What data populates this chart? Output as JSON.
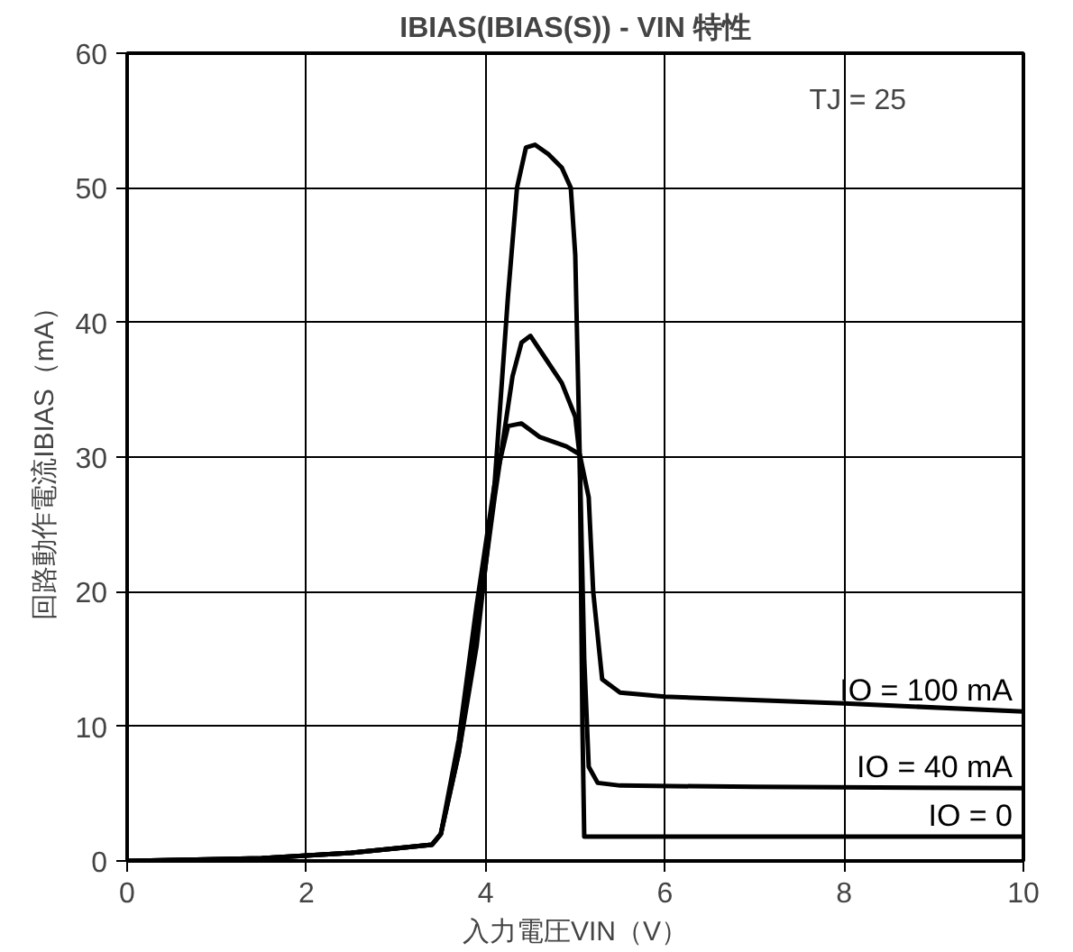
{
  "chart_data": {
    "type": "line",
    "title": "IBIAS(IBIAS(S)) - VIN 特性",
    "xlabel": "入力電圧VIN（V）",
    "ylabel": "回路動作電流IBIAS（mA）",
    "annotations": [
      "TJ = 25"
    ],
    "xlim": [
      0,
      10
    ],
    "ylim": [
      0,
      60
    ],
    "xticks": [
      0,
      2,
      4,
      6,
      8,
      10
    ],
    "yticks": [
      0,
      10,
      20,
      30,
      40,
      50,
      60
    ],
    "grid": true,
    "marker": "none",
    "line_style": "solid",
    "series": [
      {
        "name": "IO = 100 mA",
        "color": "#000000",
        "x": [
          0,
          1.5,
          2.5,
          3.4,
          3.5,
          3.7,
          3.9,
          4.1,
          4.25,
          4.4,
          4.6,
          4.9,
          5.05,
          5.15,
          5.2,
          5.3,
          5.5,
          6,
          8,
          10
        ],
        "values": [
          0,
          0.2,
          0.6,
          1.2,
          2,
          9,
          19,
          28,
          32.3,
          32.5,
          31.5,
          30.8,
          30.2,
          27,
          20,
          13.5,
          12.5,
          12.2,
          11.7,
          11.1
        ]
      },
      {
        "name": "IO = 40 mA",
        "color": "#000000",
        "x": [
          0,
          1.5,
          2.5,
          3.4,
          3.5,
          3.7,
          3.9,
          4.1,
          4.3,
          4.4,
          4.5,
          4.65,
          4.85,
          5.0,
          5.05,
          5.1,
          5.15,
          5.25,
          5.5,
          7,
          10
        ],
        "values": [
          0,
          0.2,
          0.6,
          1.2,
          2,
          8,
          17,
          27,
          36,
          38.5,
          39,
          37.5,
          35.5,
          33,
          30,
          15,
          7,
          5.8,
          5.6,
          5.5,
          5.4
        ]
      },
      {
        "name": "IO = 0",
        "color": "#000000",
        "x": [
          0,
          1.5,
          2.5,
          3.4,
          3.5,
          3.7,
          3.9,
          4.1,
          4.25,
          4.35,
          4.45,
          4.55,
          4.7,
          4.85,
          4.95,
          5.0,
          5.05,
          5.08,
          5.1,
          6,
          8,
          10
        ],
        "values": [
          0,
          0.2,
          0.6,
          1.2,
          2,
          8,
          16,
          28,
          42,
          50,
          53,
          53.2,
          52.5,
          51.5,
          50,
          45,
          30,
          10,
          1.8,
          1.8,
          1.8,
          1.8
        ]
      }
    ]
  }
}
